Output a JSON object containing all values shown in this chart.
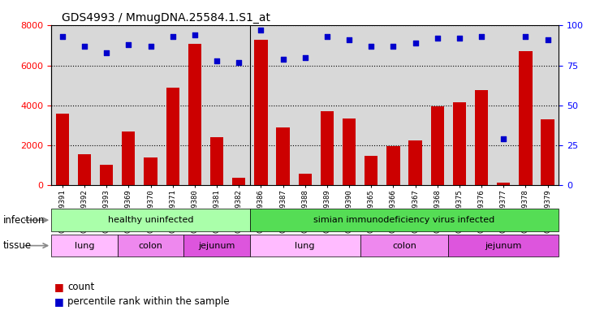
{
  "title": "GDS4993 / MmugDNA.25584.1.S1_at",
  "samples": [
    "GSM1249391",
    "GSM1249392",
    "GSM1249393",
    "GSM1249369",
    "GSM1249370",
    "GSM1249371",
    "GSM1249380",
    "GSM1249381",
    "GSM1249382",
    "GSM1249386",
    "GSM1249387",
    "GSM1249388",
    "GSM1249389",
    "GSM1249390",
    "GSM1249365",
    "GSM1249366",
    "GSM1249367",
    "GSM1249368",
    "GSM1249375",
    "GSM1249376",
    "GSM1249377",
    "GSM1249378",
    "GSM1249379"
  ],
  "counts": [
    3600,
    1550,
    1000,
    2700,
    1400,
    4900,
    7100,
    2400,
    350,
    7300,
    2900,
    550,
    3700,
    3350,
    1450,
    1950,
    2250,
    3950,
    4150,
    4750,
    100,
    6700,
    3300
  ],
  "percentiles": [
    93,
    87,
    83,
    88,
    87,
    93,
    94,
    78,
    77,
    97,
    79,
    80,
    93,
    91,
    87,
    87,
    89,
    92,
    92,
    93,
    29,
    93,
    91
  ],
  "bar_color": "#cc0000",
  "dot_color": "#0000cc",
  "ylim_left": [
    0,
    8000
  ],
  "ylim_right": [
    0,
    100
  ],
  "yticks_left": [
    0,
    2000,
    4000,
    6000,
    8000
  ],
  "yticks_right": [
    0,
    25,
    50,
    75,
    100
  ],
  "bg_color": "#d8d8d8",
  "infection_groups": [
    {
      "label": "healthy uninfected",
      "start": 0,
      "end": 9,
      "color": "#aaffaa"
    },
    {
      "label": "simian immunodeficiency virus infected",
      "start": 9,
      "end": 23,
      "color": "#55dd55"
    }
  ],
  "tissue_groups": [
    {
      "label": "lung",
      "start": 0,
      "end": 3,
      "color": "#ffbbff"
    },
    {
      "label": "colon",
      "start": 3,
      "end": 6,
      "color": "#ee88ee"
    },
    {
      "label": "jejunum",
      "start": 6,
      "end": 9,
      "color": "#dd55dd"
    },
    {
      "label": "lung",
      "start": 9,
      "end": 14,
      "color": "#ffbbff"
    },
    {
      "label": "colon",
      "start": 14,
      "end": 18,
      "color": "#ee88ee"
    },
    {
      "label": "jejunum",
      "start": 18,
      "end": 23,
      "color": "#dd55dd"
    }
  ]
}
